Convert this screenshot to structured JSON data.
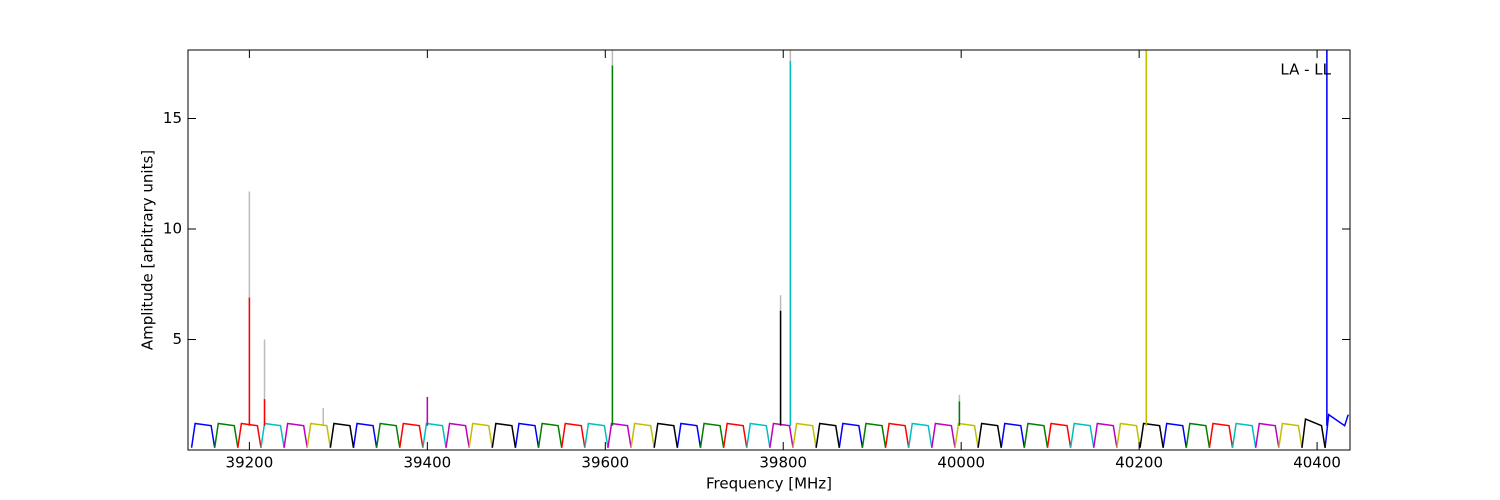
{
  "chart_data": {
    "type": "line",
    "xlabel": "Frequency [MHz]",
    "ylabel": "Amplitude [arbitrary units]",
    "annotation": "LA - LL",
    "xlim": [
      39131,
      40437
    ],
    "xticks": [
      39200,
      39400,
      39600,
      39800,
      40000,
      40200,
      40400
    ],
    "ylim": [
      0,
      18.1
    ],
    "yticks": [
      5,
      10,
      15
    ],
    "series": [
      {
        "color": "#bbbbbb",
        "x": [
          39200,
          39200,
          39200,
          39217,
          39217,
          39217,
          39283,
          39283,
          39283,
          39400,
          39400,
          39400,
          39608,
          39608,
          39608,
          39797,
          39797,
          39797,
          39808,
          39808,
          39808,
          39998,
          39998,
          39998,
          40208,
          40208,
          40208,
          40411,
          40411
        ],
        "values": [
          1.1,
          11.7,
          null,
          1.1,
          5.0,
          null,
          1.1,
          1.9,
          null,
          1.1,
          2.4,
          null,
          1.1,
          18.1,
          null,
          1.1,
          7.0,
          null,
          1.1,
          18.1,
          null,
          1.1,
          2.5,
          null,
          1.1,
          18.1,
          null,
          1.1,
          18.1
        ]
      },
      {
        "color": "#0000ff",
        "x": [
          39135,
          39139,
          39157,
          39161,
          39161,
          39317,
          39321,
          39339,
          39343,
          39343,
          39499,
          39503,
          39521,
          39525,
          39525,
          39681,
          39685,
          39703,
          39707,
          39707,
          39863,
          39867,
          39885,
          39889,
          39889,
          40045,
          40049,
          40067,
          40071,
          40071,
          40227,
          40231,
          40249,
          40253,
          40253,
          40409,
          40413,
          40431,
          40435
        ],
        "values": [
          0.1,
          1.2,
          1.1,
          0.1,
          null,
          0.1,
          1.2,
          1.1,
          0.1,
          null,
          0.1,
          1.2,
          1.1,
          0.1,
          null,
          0.1,
          1.2,
          1.1,
          0.1,
          null,
          0.1,
          1.2,
          1.1,
          0.1,
          null,
          0.1,
          1.2,
          1.1,
          0.1,
          null,
          0.1,
          1.2,
          1.1,
          0.1,
          null,
          0.1,
          1.6,
          1.1,
          1.6
        ]
      },
      {
        "color": "#008000",
        "x": [
          39161,
          39165,
          39183,
          39187,
          39187,
          39343,
          39347,
          39365,
          39369,
          39369,
          39525,
          39529,
          39547,
          39551,
          39551,
          39707,
          39711,
          39729,
          39733,
          39733,
          39889,
          39893,
          39911,
          39915,
          39915,
          40071,
          40075,
          40093,
          40097,
          40097,
          40253,
          40257,
          40275,
          40279
        ],
        "values": [
          0.1,
          1.2,
          1.1,
          0.1,
          null,
          0.1,
          1.2,
          1.1,
          0.1,
          null,
          0.1,
          1.2,
          1.1,
          0.1,
          null,
          0.1,
          1.2,
          1.1,
          0.1,
          null,
          0.1,
          1.2,
          1.1,
          0.1,
          null,
          0.1,
          1.2,
          1.1,
          0.1,
          null,
          0.1,
          1.2,
          1.1,
          0.1
        ]
      },
      {
        "color": "#ff0000",
        "x": [
          39187,
          39191,
          39209,
          39213,
          39213,
          39369,
          39373,
          39391,
          39395,
          39395,
          39551,
          39555,
          39573,
          39577,
          39577,
          39733,
          39737,
          39755,
          39759,
          39759,
          39915,
          39919,
          39937,
          39941,
          39941,
          40097,
          40101,
          40119,
          40123,
          40123,
          40279,
          40283,
          40301,
          40305
        ],
        "values": [
          0.1,
          1.2,
          1.1,
          0.1,
          null,
          0.1,
          1.2,
          1.1,
          0.1,
          null,
          0.1,
          1.2,
          1.1,
          0.1,
          null,
          0.1,
          1.2,
          1.1,
          0.1,
          null,
          0.1,
          1.2,
          1.1,
          0.1,
          null,
          0.1,
          1.2,
          1.1,
          0.1,
          null,
          0.1,
          1.2,
          1.1,
          0.1
        ]
      },
      {
        "color": "#00bfbf",
        "x": [
          39213,
          39217,
          39235,
          39239,
          39239,
          39395,
          39399,
          39417,
          39421,
          39421,
          39577,
          39581,
          39599,
          39603,
          39603,
          39759,
          39763,
          39781,
          39785,
          39785,
          39941,
          39945,
          39963,
          39967,
          39967,
          40123,
          40127,
          40145,
          40149,
          40149,
          40305,
          40309,
          40327,
          40331
        ],
        "values": [
          0.1,
          1.2,
          1.1,
          0.1,
          null,
          0.1,
          1.2,
          1.1,
          0.1,
          null,
          0.1,
          1.2,
          1.1,
          0.1,
          null,
          0.1,
          1.2,
          1.1,
          0.1,
          null,
          0.1,
          1.2,
          1.1,
          0.1,
          null,
          0.1,
          1.2,
          1.1,
          0.1,
          null,
          0.1,
          1.2,
          1.1,
          0.1
        ]
      },
      {
        "color": "#bf00bf",
        "x": [
          39239,
          39243,
          39261,
          39265,
          39265,
          39421,
          39425,
          39443,
          39447,
          39447,
          39603,
          39607,
          39625,
          39629,
          39629,
          39785,
          39789,
          39807,
          39811,
          39811,
          39967,
          39971,
          39989,
          39993,
          39993,
          40149,
          40153,
          40171,
          40175,
          40175,
          40331,
          40335,
          40353,
          40357
        ],
        "values": [
          0.1,
          1.2,
          1.1,
          0.1,
          null,
          0.1,
          1.2,
          1.1,
          0.1,
          null,
          0.1,
          1.2,
          1.1,
          0.1,
          null,
          0.1,
          1.2,
          1.1,
          0.1,
          null,
          0.1,
          1.2,
          1.1,
          0.1,
          null,
          0.1,
          1.2,
          1.1,
          0.1,
          null,
          0.1,
          1.2,
          1.1,
          0.1
        ]
      },
      {
        "color": "#bfbf00",
        "x": [
          39265,
          39269,
          39287,
          39291,
          39291,
          39447,
          39451,
          39469,
          39473,
          39473,
          39629,
          39633,
          39651,
          39655,
          39655,
          39811,
          39815,
          39833,
          39837,
          39837,
          39993,
          39997,
          40015,
          40019,
          40019,
          40175,
          40179,
          40197,
          40201,
          40201,
          40357,
          40361,
          40379,
          40383
        ],
        "values": [
          0.1,
          1.2,
          1.1,
          0.1,
          null,
          0.1,
          1.2,
          1.1,
          0.1,
          null,
          0.1,
          1.2,
          1.1,
          0.1,
          null,
          0.1,
          1.2,
          1.1,
          0.1,
          null,
          0.1,
          1.2,
          1.1,
          0.1,
          null,
          0.1,
          1.2,
          1.1,
          0.1,
          null,
          0.1,
          1.2,
          1.1,
          0.1
        ]
      },
      {
        "color": "#000000",
        "x": [
          39291,
          39295,
          39313,
          39317,
          39317,
          39473,
          39477,
          39495,
          39499,
          39499,
          39655,
          39659,
          39677,
          39681,
          39681,
          39837,
          39841,
          39859,
          39863,
          39863,
          40019,
          40023,
          40041,
          40045,
          40045,
          40201,
          40205,
          40223,
          40227,
          40227,
          40383,
          40387,
          40405,
          40409
        ],
        "values": [
          0.1,
          1.2,
          1.1,
          0.1,
          null,
          0.1,
          1.2,
          1.1,
          0.1,
          null,
          0.1,
          1.2,
          1.1,
          0.1,
          null,
          0.1,
          1.2,
          1.1,
          0.1,
          null,
          0.1,
          1.2,
          1.1,
          0.1,
          null,
          0.1,
          1.2,
          1.1,
          0.1,
          null,
          0.1,
          1.4,
          1.1,
          0.1
        ]
      },
      {
        "color": "#ff0000",
        "x": [
          39200,
          39200,
          39200,
          39217,
          39217
        ],
        "values": [
          1.1,
          6.9,
          null,
          1.1,
          2.3
        ]
      },
      {
        "color": "#bf00bf",
        "x": [
          39400,
          39400
        ],
        "values": [
          1.1,
          2.4
        ]
      },
      {
        "color": "#008000",
        "x": [
          39608,
          39608,
          39608,
          39998,
          39998
        ],
        "values": [
          1.1,
          17.4,
          null,
          1.1,
          2.2
        ]
      },
      {
        "color": "#000000",
        "x": [
          39797,
          39797
        ],
        "values": [
          1.1,
          6.3
        ]
      },
      {
        "color": "#00bfbf",
        "x": [
          39808,
          39808
        ],
        "values": [
          1.1,
          17.6
        ]
      },
      {
        "color": "#bfbf00",
        "x": [
          40208,
          40208
        ],
        "values": [
          1.1,
          18.1
        ]
      },
      {
        "color": "#0000ff",
        "x": [
          40411,
          40411
        ],
        "values": [
          1.1,
          18.1
        ]
      }
    ]
  }
}
